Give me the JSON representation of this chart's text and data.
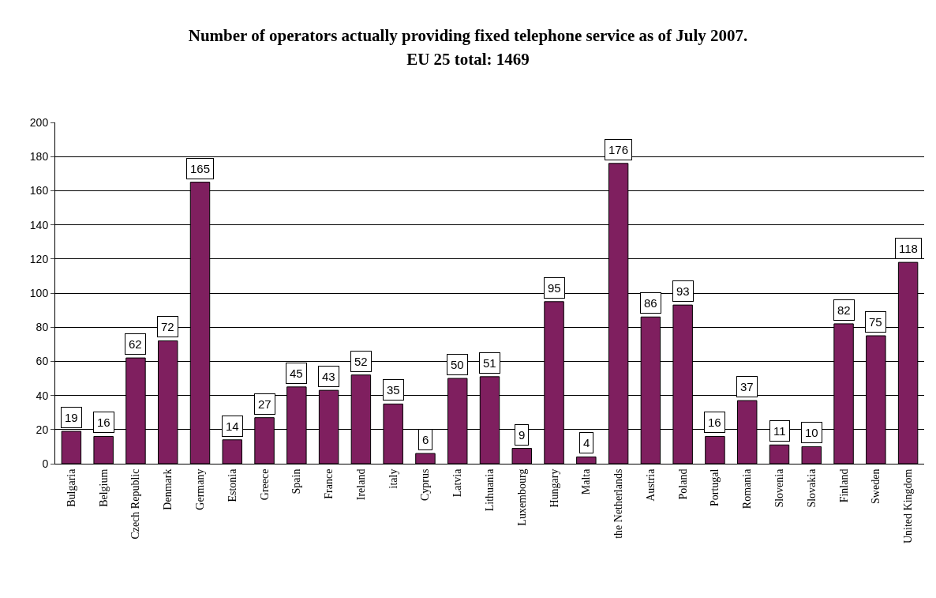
{
  "chart_data": {
    "type": "bar",
    "title": "Number of operators actually providing fixed telephone service as of July 2007. EU 25 total: 1469",
    "categories": [
      "Bulgaria",
      "Belgium",
      "Czech Republic",
      "Denmark",
      "Germany",
      "Estonia",
      "Greece",
      "Spain",
      "France",
      "Ireland",
      "italy",
      "Cyprus",
      "Latvia",
      "Lithuania",
      "Luxembourg",
      "Hungary",
      "Malta",
      "the Netherlands",
      "Austria",
      "Poland",
      "Portugal",
      "Romania",
      "Slovenia",
      "Slovakia",
      "Finland",
      "Sweden",
      "United Kingdom"
    ],
    "values": [
      19,
      16,
      62,
      72,
      165,
      14,
      27,
      45,
      43,
      52,
      35,
      6,
      50,
      51,
      9,
      95,
      4,
      176,
      86,
      93,
      16,
      37,
      11,
      10,
      82,
      75,
      118
    ],
    "color": "#7f1f5f",
    "ylim": [
      0,
      200
    ],
    "yticks": [
      0,
      20,
      40,
      60,
      80,
      100,
      120,
      140,
      160,
      180,
      200
    ],
    "grid": "y",
    "data_labels": true
  }
}
